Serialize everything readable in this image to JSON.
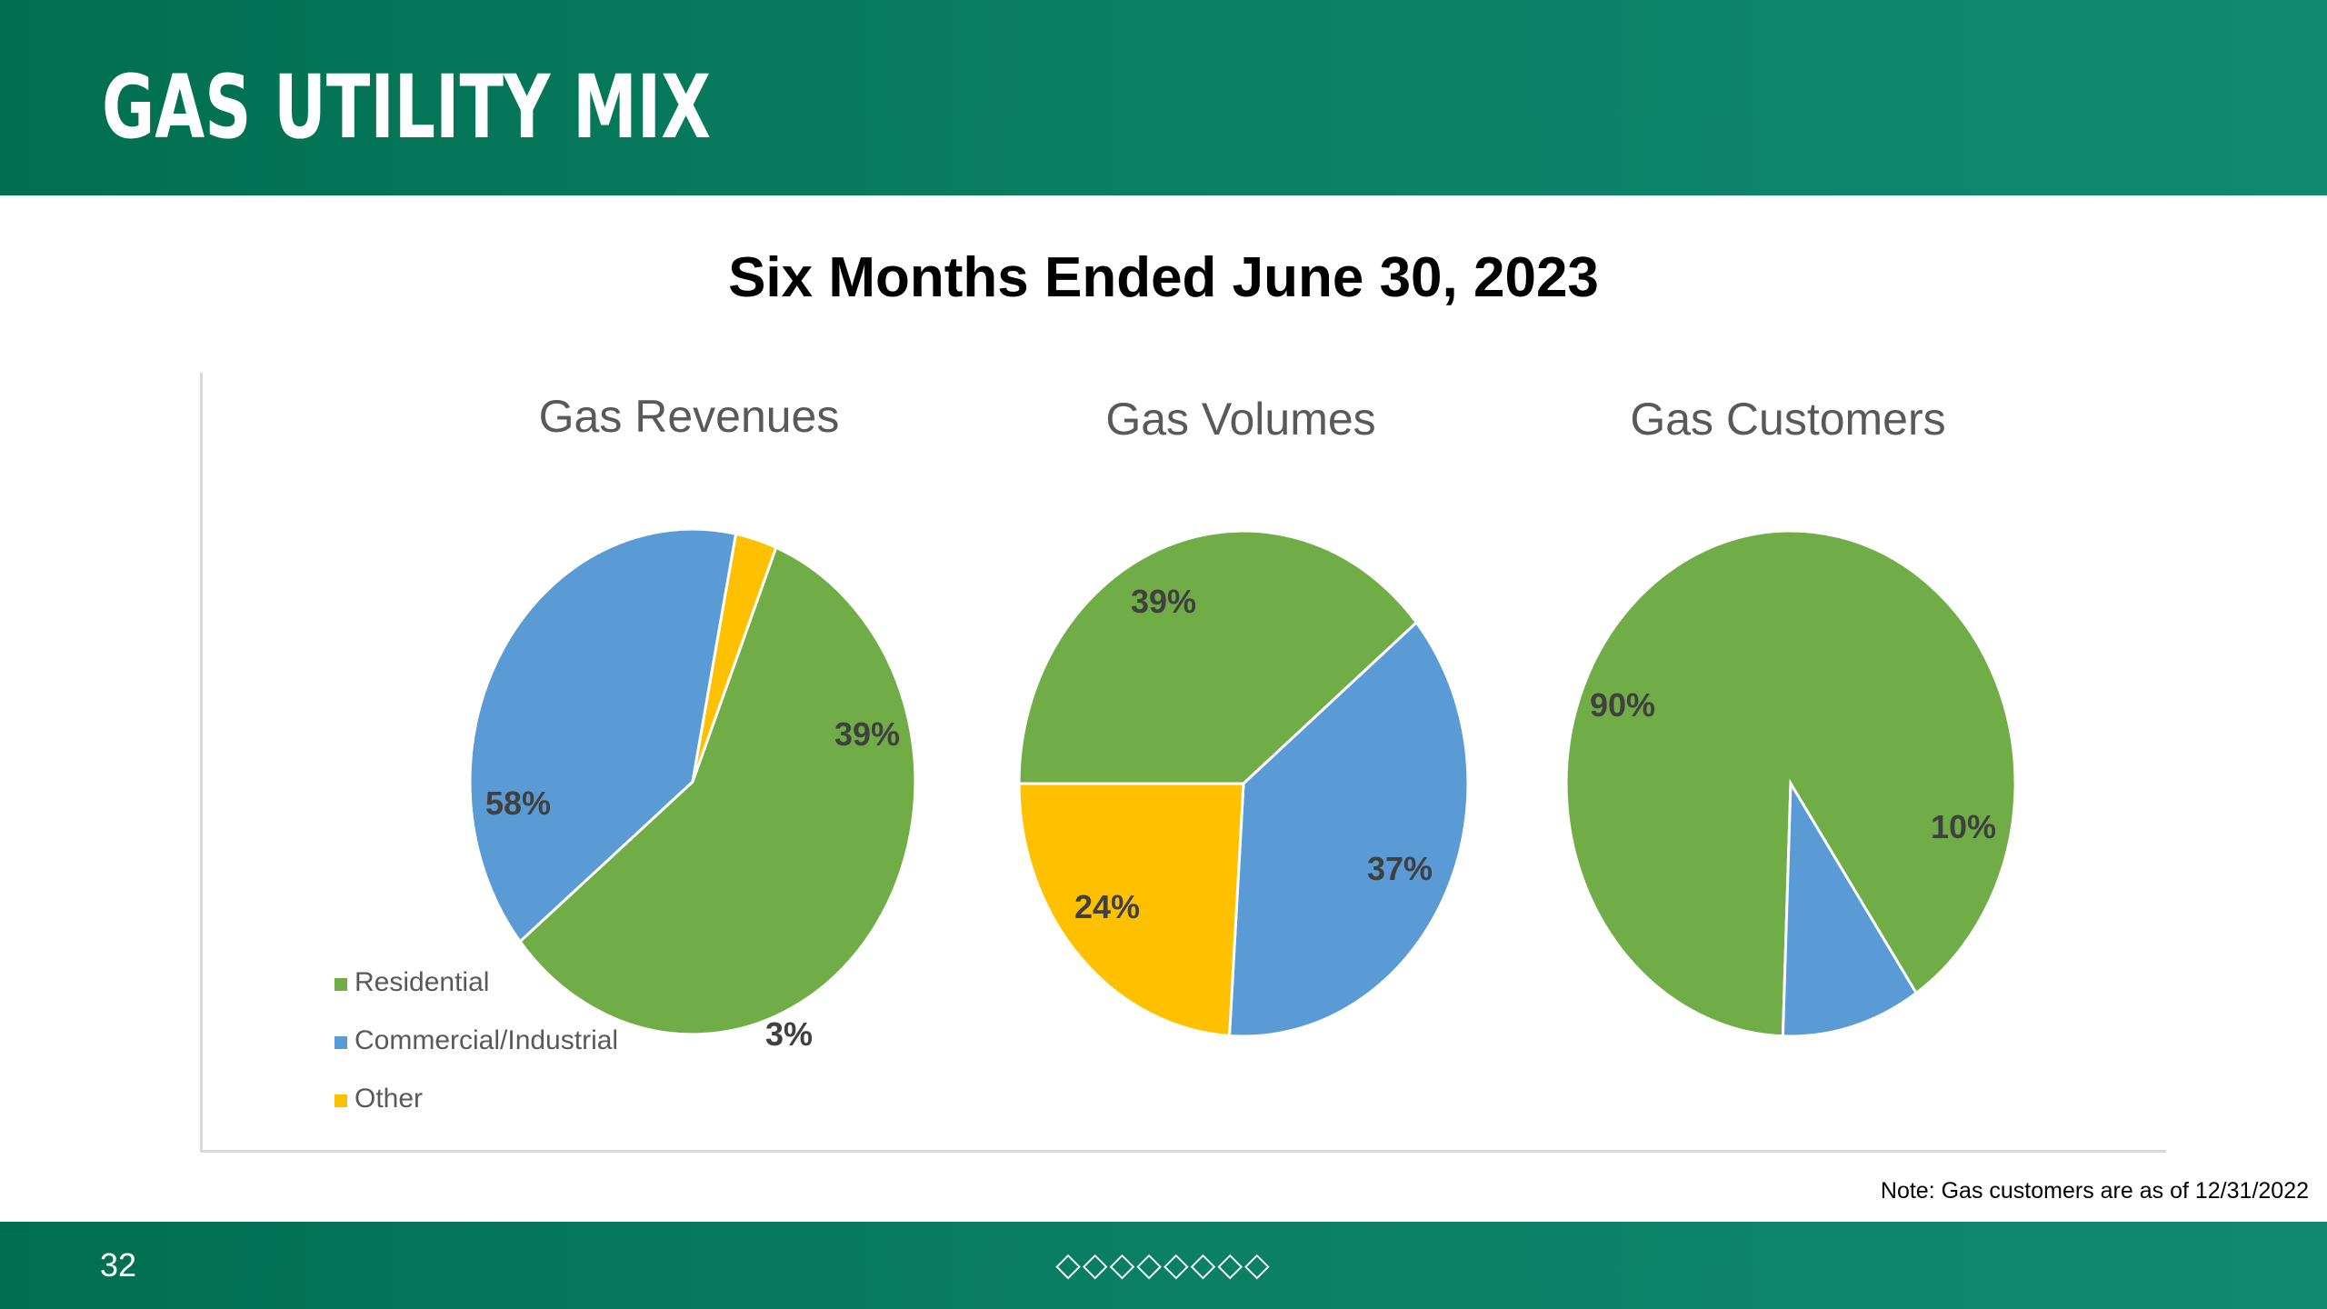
{
  "header": {
    "title": "GAS UTILITY MIX"
  },
  "subtitle": "Six Months Ended June 30, 2023",
  "legend": {
    "items": [
      {
        "label": "Residential",
        "color": "#70ad47"
      },
      {
        "label": "Commercial/Industrial",
        "color": "#5b9bd5"
      },
      {
        "label": "Other",
        "color": "#ffc000"
      }
    ]
  },
  "chart_data": [
    {
      "type": "pie",
      "title": "Gas Revenues",
      "labels": [
        "Residential",
        "Commercial/Industrial",
        "Other"
      ],
      "values": [
        58,
        39,
        3
      ],
      "data_labels": [
        "58%",
        "39%",
        "3%"
      ],
      "colors": [
        "#70ad47",
        "#5b9bd5",
        "#ffc000"
      ]
    },
    {
      "type": "pie",
      "title": "Gas Volumes",
      "labels": [
        "Residential",
        "Commercial/Industrial",
        "Other"
      ],
      "values": [
        39,
        37,
        24
      ],
      "data_labels": [
        "39%",
        "37%",
        "24%"
      ],
      "colors": [
        "#70ad47",
        "#5b9bd5",
        "#ffc000"
      ]
    },
    {
      "type": "pie",
      "title": "Gas Customers",
      "labels": [
        "Residential",
        "Commercial/Industrial"
      ],
      "values": [
        90,
        10
      ],
      "data_labels": [
        "90%",
        "10%"
      ],
      "colors": [
        "#70ad47",
        "#5b9bd5"
      ]
    }
  ],
  "note": "Note: Gas customers are as of 12/31/2022",
  "footer": {
    "page_number": "32",
    "decoration": "◇◇◇◇◇◇◇◇"
  }
}
